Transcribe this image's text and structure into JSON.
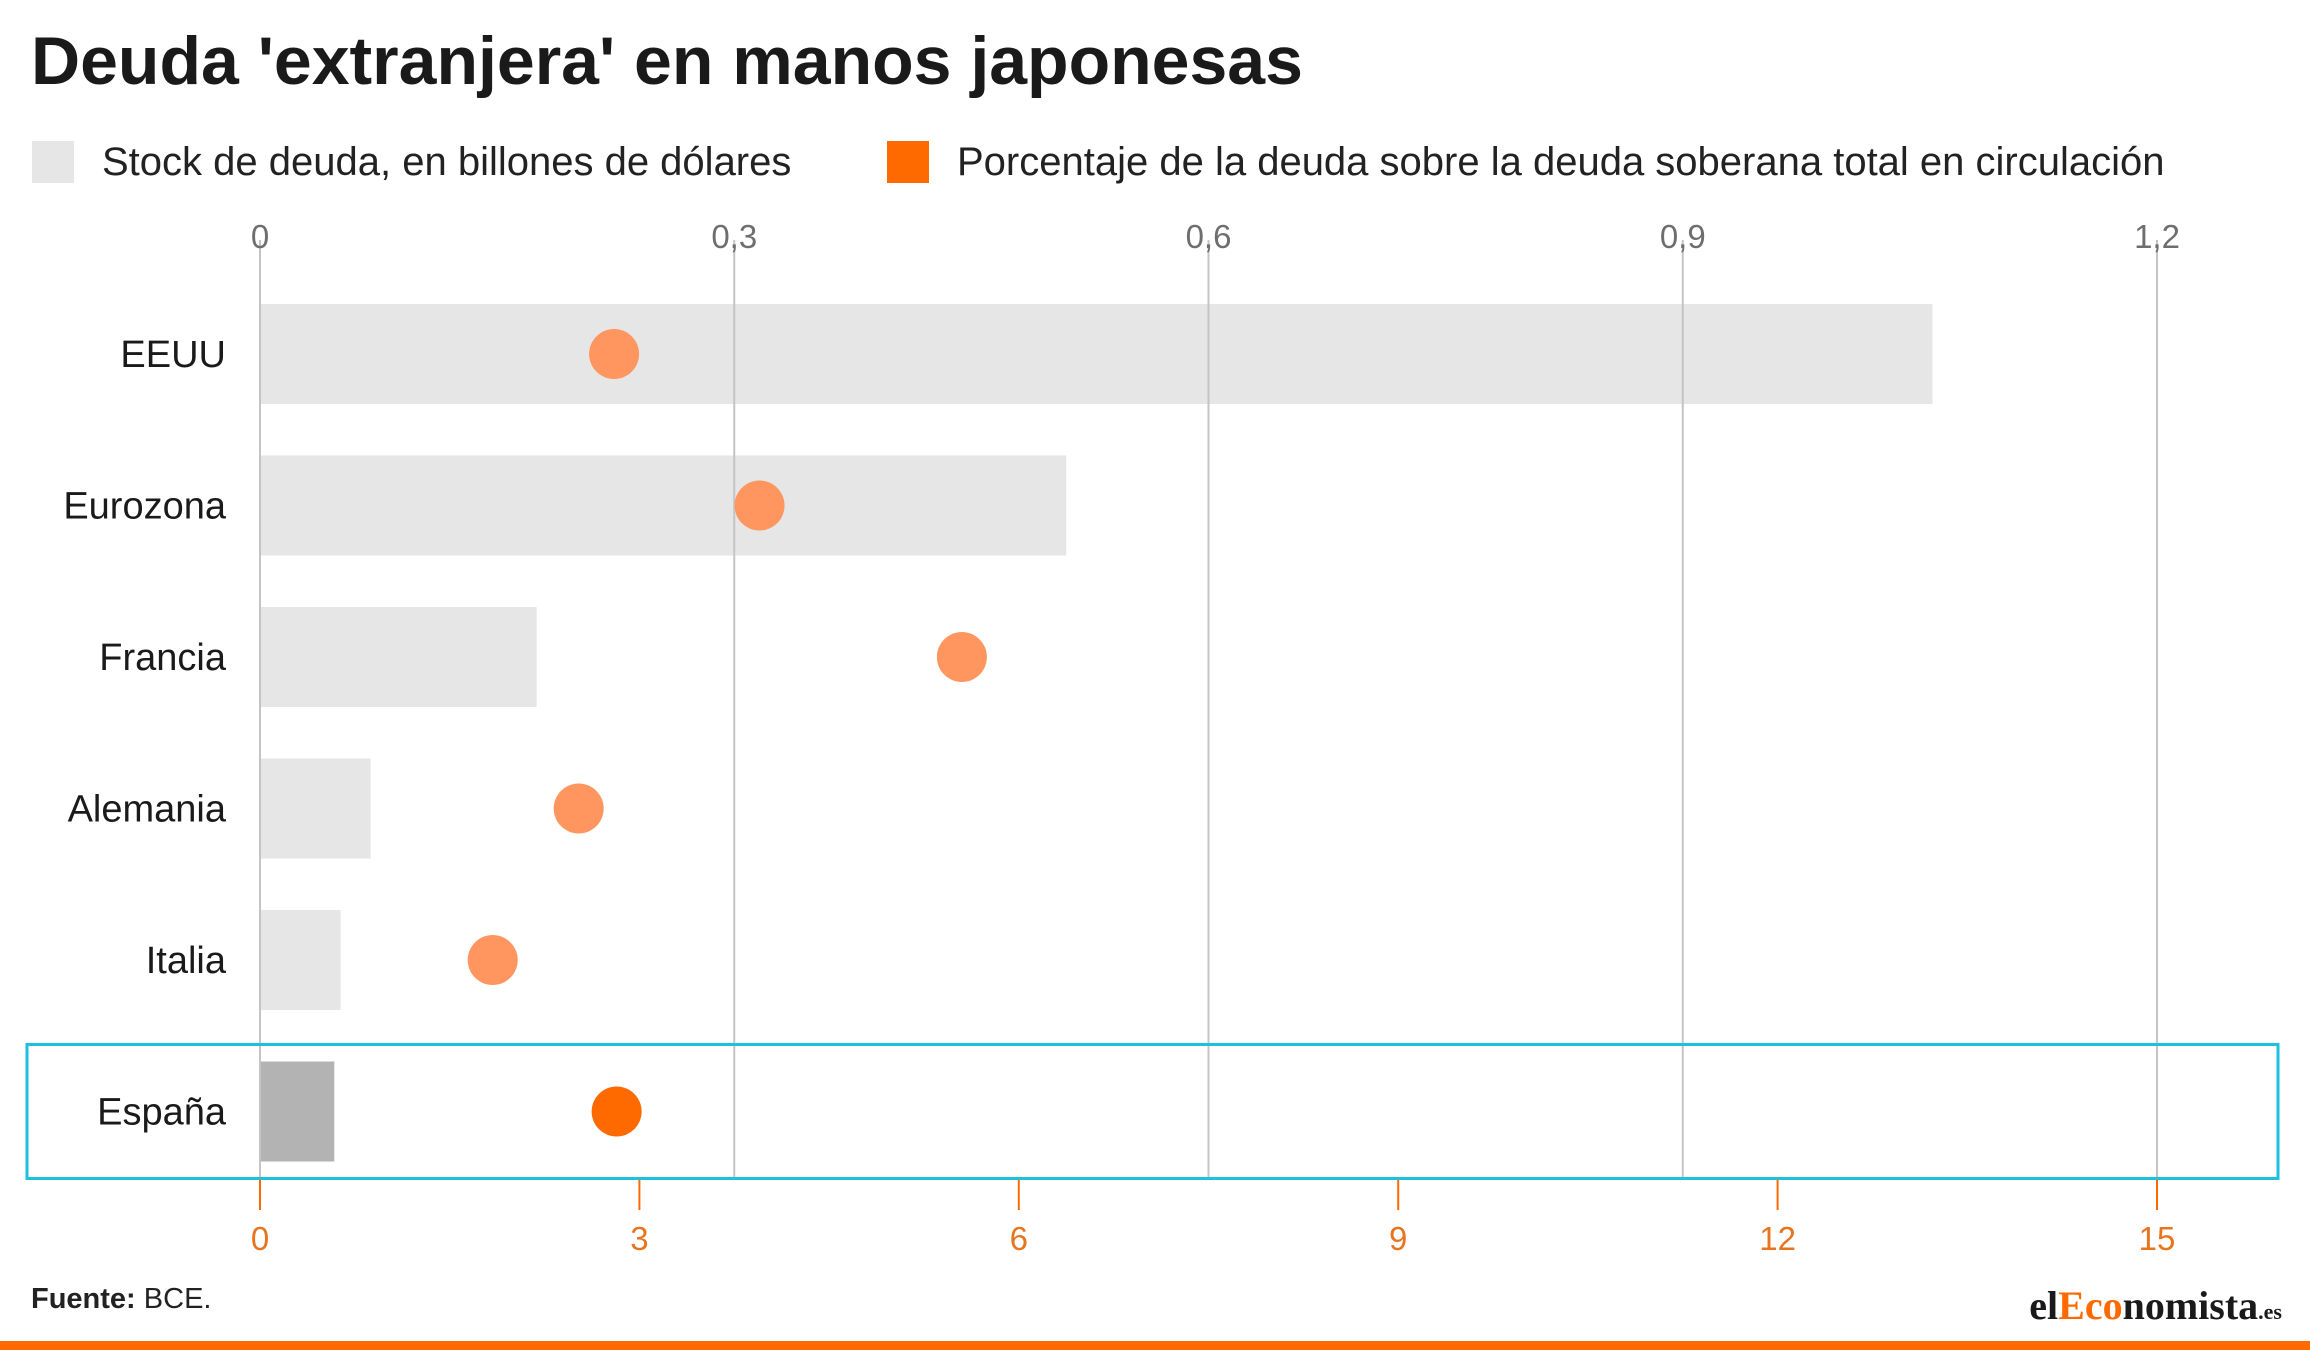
{
  "title": "Deuda 'extranjera' en manos japonesas",
  "legend": {
    "stock": "Stock de deuda, en billones de dólares",
    "pct": "Porcentaje de la deuda sobre la deuda soberana total en circulación"
  },
  "source": {
    "label": "Fuente:",
    "text": "BCE."
  },
  "logo": {
    "pre": "el",
    "accent": "Eco",
    "post": "nomista",
    "tld": ".es"
  },
  "colors": {
    "bar": "#e6e6e6",
    "bar_highlight": "#b3b3b3",
    "dot": "#ff9660",
    "dot_highlight": "#ff6a00",
    "highlight_box": "#1ec0e0",
    "grid": "#c4c4c4",
    "top_axis_text": "#6e6e6e",
    "bottom_axis_text": "#e8741e"
  },
  "chart_data": {
    "type": "bar",
    "orientation": "horizontal",
    "categories": [
      "EEUU",
      "Eurozona",
      "Francia",
      "Alemania",
      "Italia",
      "España"
    ],
    "highlight": "España",
    "top_axis": {
      "range": [
        0,
        1.2
      ],
      "ticks": [
        "0",
        "0,3",
        "0,6",
        "0,9",
        "1,2"
      ]
    },
    "bottom_axis": {
      "range": [
        0,
        15
      ],
      "ticks": [
        "0",
        "3",
        "6",
        "9",
        "12",
        "15"
      ]
    },
    "series": [
      {
        "name": "Stock de deuda, en billones de dólares",
        "type": "bar",
        "axis": "top",
        "values": [
          1.058,
          0.51,
          0.175,
          0.07,
          0.051,
          0.047
        ]
      },
      {
        "name": "Porcentaje de la deuda sobre la deuda soberana total en circulación",
        "type": "dot",
        "axis": "bottom",
        "values": [
          2.8,
          3.95,
          5.55,
          2.52,
          1.84,
          2.82
        ]
      }
    ],
    "grid": true,
    "legend_position": "top-left"
  }
}
